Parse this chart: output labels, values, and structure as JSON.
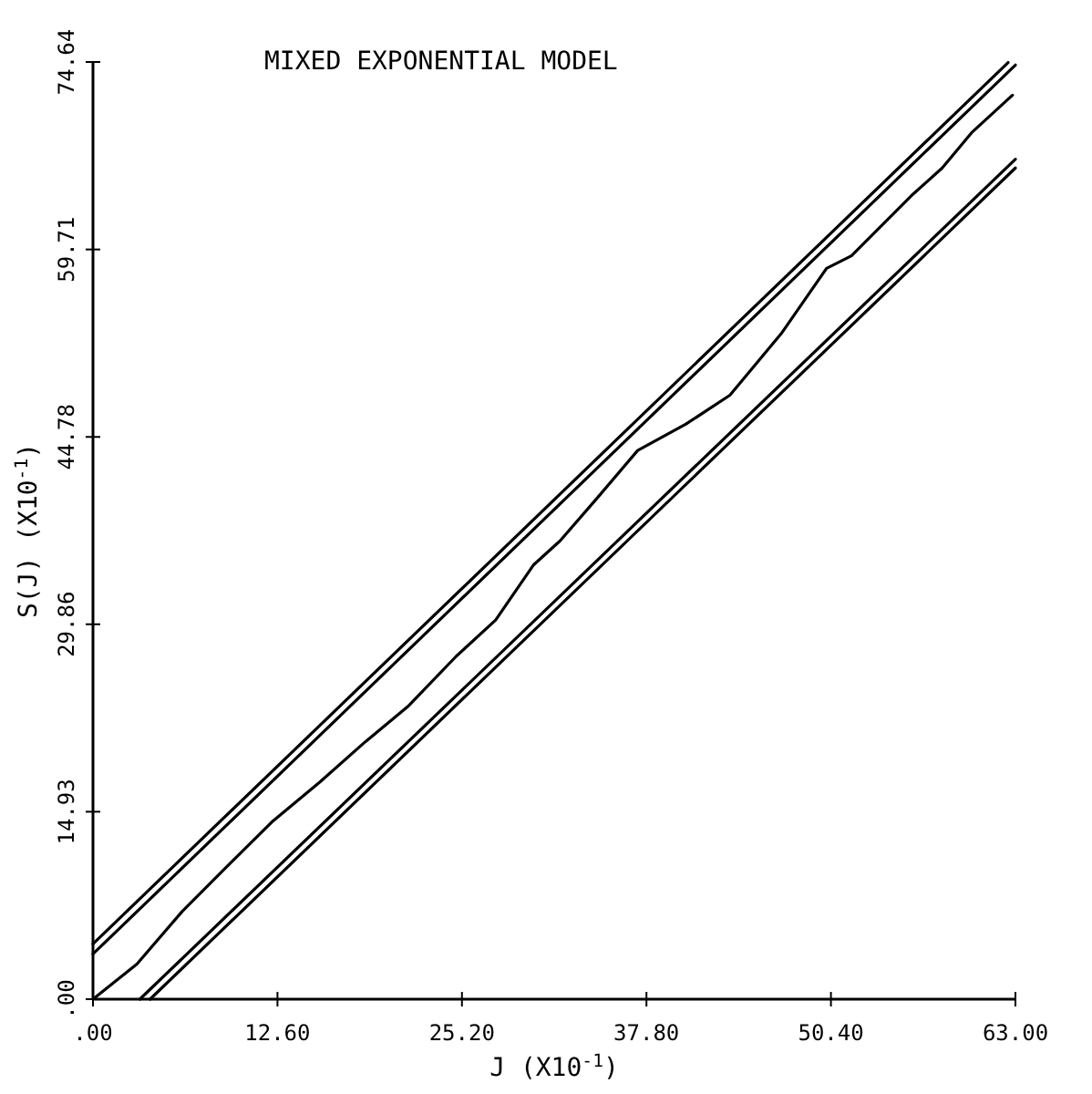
{
  "chart_data": {
    "type": "line",
    "title": "MIXED EXPONENTIAL MODEL",
    "xlabel": "J (X10$^{-1}$)",
    "ylabel": "S(J) (X10$^{-1}$)",
    "xlim": [
      0,
      63
    ],
    "ylim": [
      0,
      74.64
    ],
    "xticks": [
      {
        "value": 0,
        "label": ".00"
      },
      {
        "value": 12.6,
        "label": "12.60"
      },
      {
        "value": 25.2,
        "label": "25.20"
      },
      {
        "value": 37.8,
        "label": "37.80"
      },
      {
        "value": 50.4,
        "label": "50.40"
      },
      {
        "value": 63,
        "label": "63.00"
      }
    ],
    "yticks": [
      {
        "value": 0,
        "label": ".00"
      },
      {
        "value": 14.93,
        "label": "14.93"
      },
      {
        "value": 29.86,
        "label": "29.86"
      },
      {
        "value": 44.78,
        "label": "44.78"
      },
      {
        "value": 59.71,
        "label": "59.71"
      },
      {
        "value": 74.64,
        "label": "74.64"
      }
    ],
    "marker": "none",
    "line_style": "solid",
    "series": [
      {
        "color": "#000000",
        "x": [
          0,
          62.5
        ],
        "values": [
          4.4,
          74.6
        ]
      },
      {
        "color": "#000000",
        "x": [
          0,
          63
        ],
        "values": [
          3.6,
          74.4
        ]
      },
      {
        "color": "#000000",
        "x": [
          0,
          3,
          6.1,
          9,
          12.3,
          15.5,
          18.6,
          21.5,
          24.8,
          27.5,
          30.1,
          31.9,
          34.5,
          37.2,
          40.5,
          43.5,
          47,
          50.1,
          51.8,
          55.9,
          58,
          60,
          62.8
        ],
        "values": [
          0,
          2.8,
          7,
          10.4,
          14.2,
          17.3,
          20.5,
          23.3,
          27.3,
          30.2,
          34.6,
          36.5,
          40,
          43.7,
          45.8,
          48.1,
          53,
          58.2,
          59.2,
          64,
          66.2,
          69,
          72
        ]
      },
      {
        "color": "#000000",
        "x": [
          3.2,
          63
        ],
        "values": [
          0,
          66.9
        ]
      },
      {
        "color": "#000000",
        "x": [
          3.9,
          63
        ],
        "values": [
          0,
          66.2
        ]
      }
    ]
  }
}
